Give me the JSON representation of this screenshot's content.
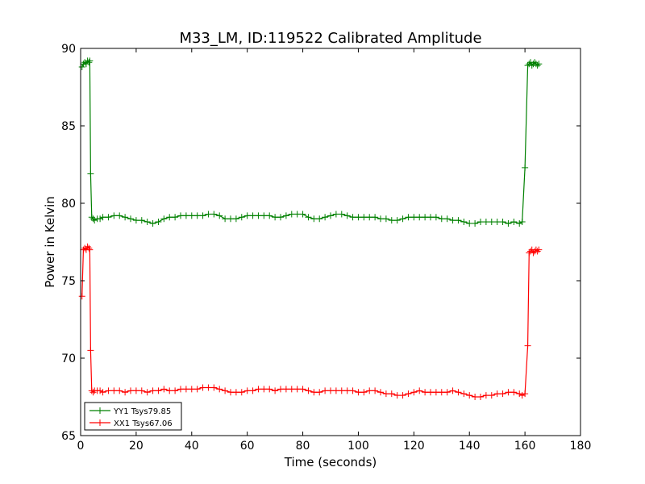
{
  "chart_data": {
    "type": "line",
    "title": "M33_LM, ID:119522 Calibrated Amplitude",
    "xlabel": "Time (seconds)",
    "ylabel": "Power in Kelvin",
    "xlim": [
      0,
      180
    ],
    "ylim": [
      65,
      90
    ],
    "xticks": [
      0,
      20,
      40,
      60,
      80,
      100,
      120,
      140,
      160,
      180
    ],
    "yticks": [
      65,
      70,
      75,
      80,
      85,
      90
    ],
    "grid": false,
    "legend_position": "lower-left",
    "marker": "plus",
    "series": [
      {
        "name": "YY1 Tsys79.85",
        "color": "#008000",
        "x": [
          0.5,
          1,
          1.5,
          2,
          2.5,
          3,
          3.3,
          3.6,
          4,
          4.5,
          5,
          6,
          7,
          8,
          10,
          12,
          14,
          16,
          18,
          20,
          22,
          24,
          26,
          28,
          30,
          32,
          34,
          36,
          38,
          40,
          42,
          44,
          46,
          48,
          50,
          52,
          54,
          56,
          58,
          60,
          62,
          64,
          66,
          68,
          70,
          72,
          74,
          76,
          78,
          80,
          82,
          84,
          86,
          88,
          90,
          92,
          94,
          96,
          98,
          100,
          102,
          104,
          106,
          108,
          110,
          112,
          114,
          116,
          118,
          120,
          122,
          124,
          126,
          128,
          130,
          132,
          134,
          136,
          138,
          140,
          142,
          144,
          146,
          148,
          150,
          152,
          154,
          156,
          158,
          159,
          160,
          161,
          161.5,
          162,
          162.5,
          163,
          163.5,
          164,
          164.5,
          165
        ],
        "y": [
          88.8,
          89.0,
          89.1,
          89.0,
          89.2,
          89.1,
          89.2,
          81.9,
          79.1,
          79.0,
          78.9,
          79.0,
          79.0,
          79.1,
          79.1,
          79.2,
          79.2,
          79.1,
          79.0,
          78.9,
          78.9,
          78.8,
          78.7,
          78.8,
          79.0,
          79.1,
          79.1,
          79.2,
          79.2,
          79.2,
          79.2,
          79.2,
          79.3,
          79.3,
          79.2,
          79.0,
          79.0,
          79.0,
          79.1,
          79.2,
          79.2,
          79.2,
          79.2,
          79.2,
          79.1,
          79.1,
          79.2,
          79.3,
          79.3,
          79.3,
          79.1,
          79.0,
          79.0,
          79.1,
          79.2,
          79.3,
          79.3,
          79.2,
          79.1,
          79.1,
          79.1,
          79.1,
          79.1,
          79.0,
          79.0,
          78.9,
          78.9,
          79.0,
          79.1,
          79.1,
          79.1,
          79.1,
          79.1,
          79.1,
          79.0,
          79.0,
          78.9,
          78.9,
          78.8,
          78.7,
          78.7,
          78.8,
          78.8,
          78.8,
          78.8,
          78.8,
          78.7,
          78.8,
          78.7,
          78.8,
          82.3,
          88.9,
          89.0,
          89.1,
          88.9,
          89.0,
          89.1,
          89.0,
          88.9,
          89.0
        ]
      },
      {
        "name": "XX1 Tsys67.06",
        "color": "#ff0000",
        "x": [
          0.5,
          1,
          1.5,
          2,
          2.5,
          3,
          3.3,
          3.6,
          4,
          4.5,
          5,
          6,
          7,
          8,
          10,
          12,
          14,
          16,
          18,
          20,
          22,
          24,
          26,
          28,
          30,
          32,
          34,
          36,
          38,
          40,
          42,
          44,
          46,
          48,
          50,
          52,
          54,
          56,
          58,
          60,
          62,
          64,
          66,
          68,
          70,
          72,
          74,
          76,
          78,
          80,
          82,
          84,
          86,
          88,
          90,
          92,
          94,
          96,
          98,
          100,
          102,
          104,
          106,
          108,
          110,
          112,
          114,
          116,
          118,
          120,
          122,
          124,
          126,
          128,
          130,
          132,
          134,
          136,
          138,
          140,
          142,
          144,
          146,
          148,
          150,
          152,
          154,
          156,
          158,
          159,
          160,
          161,
          161.5,
          162,
          162.5,
          163,
          163.5,
          164,
          164.5,
          165
        ],
        "y": [
          74.0,
          77.0,
          77.1,
          77.0,
          77.2,
          77.1,
          77.0,
          70.5,
          67.9,
          67.8,
          67.9,
          67.9,
          67.9,
          67.8,
          67.9,
          67.9,
          67.9,
          67.8,
          67.9,
          67.9,
          67.9,
          67.8,
          67.9,
          67.9,
          68.0,
          67.9,
          67.9,
          68.0,
          68.0,
          68.0,
          68.0,
          68.1,
          68.1,
          68.1,
          68.0,
          67.9,
          67.8,
          67.8,
          67.8,
          67.9,
          67.9,
          68.0,
          68.0,
          68.0,
          67.9,
          68.0,
          68.0,
          68.0,
          68.0,
          68.0,
          67.9,
          67.8,
          67.8,
          67.9,
          67.9,
          67.9,
          67.9,
          67.9,
          67.9,
          67.8,
          67.8,
          67.9,
          67.9,
          67.8,
          67.7,
          67.7,
          67.6,
          67.6,
          67.7,
          67.8,
          67.9,
          67.8,
          67.8,
          67.8,
          67.8,
          67.8,
          67.9,
          67.8,
          67.7,
          67.6,
          67.5,
          67.5,
          67.6,
          67.6,
          67.7,
          67.7,
          67.8,
          67.8,
          67.7,
          67.6,
          67.7,
          70.8,
          76.8,
          76.9,
          77.0,
          76.8,
          76.9,
          77.0,
          76.9,
          77.0
        ]
      }
    ]
  }
}
